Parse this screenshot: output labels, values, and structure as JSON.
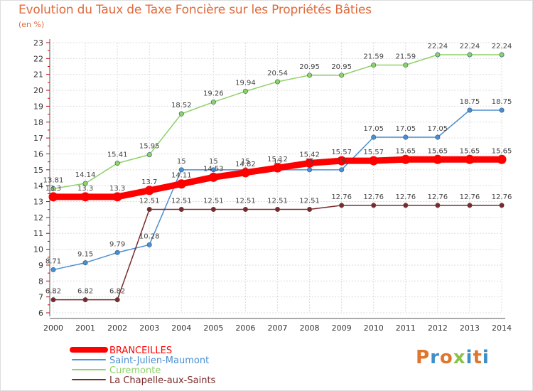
{
  "title": "Evolution du Taux de Taxe Foncière sur les Propriétés Bâties",
  "subtitle": "(en %)",
  "logo": {
    "text": "Proxiti",
    "colors": [
      "#e0762b",
      "#3c8fc9",
      "#e0762b",
      "#8bc34a",
      "#3c8fc9",
      "#e0762b",
      "#3c8fc9"
    ]
  },
  "chart_data": {
    "type": "line",
    "title": "Evolution du Taux de Taxe Foncière sur les Propriétés Bâties",
    "ylabel": "(en %)",
    "x": [
      2000,
      2001,
      2002,
      2003,
      2004,
      2005,
      2006,
      2007,
      2008,
      2009,
      2010,
      2011,
      2012,
      2013,
      2014
    ],
    "ylim": [
      6,
      23
    ],
    "yticks": [
      6,
      7,
      8,
      9,
      10,
      11,
      12,
      13,
      14,
      15,
      16,
      17,
      18,
      19,
      20,
      21,
      22,
      23
    ],
    "grid": true,
    "legend_position": "bottom-left",
    "series": [
      {
        "name": "BRANCEILLES",
        "color": "#ff0000",
        "values": [
          13.3,
          13.3,
          13.3,
          13.7,
          14.11,
          14.53,
          14.82,
          15.12,
          15.42,
          15.57,
          15.57,
          15.65,
          15.65,
          15.65,
          15.65
        ],
        "labels": [
          "13.3",
          "13.3",
          "13.3",
          "13.7",
          "14.11",
          "14.53",
          "14.82",
          "15.12",
          "15.42",
          "15.57",
          "15.57",
          "15.65",
          "15.65",
          "15.65",
          "15.65"
        ]
      },
      {
        "name": "Saint-Julien-Maumont",
        "color": "#4b8fd0",
        "values": [
          8.71,
          9.15,
          9.79,
          10.28,
          15,
          15,
          15,
          15,
          15,
          15,
          17.05,
          17.05,
          17.05,
          18.75,
          18.75
        ],
        "labels": [
          "8.71",
          "9.15",
          "9.79",
          "10.28",
          "15",
          "15",
          "15",
          "15",
          "15",
          "15",
          "17.05",
          "17.05",
          "17.05",
          "18.75",
          "18.75"
        ]
      },
      {
        "name": "Curemonte",
        "color": "#8fd16a",
        "values": [
          13.81,
          14.14,
          15.41,
          15.95,
          18.52,
          19.26,
          19.94,
          20.54,
          20.95,
          20.95,
          21.59,
          21.59,
          22.24,
          22.24,
          22.24
        ],
        "labels": [
          "13.81",
          "14.14",
          "15.41",
          "15.95",
          "18.52",
          "19.26",
          "19.94",
          "20.54",
          "20.95",
          "20.95",
          "21.59",
          "21.59",
          "22.24",
          "22.24",
          "22.24"
        ]
      },
      {
        "name": "La Chapelle-aux-Saints",
        "color": "#7b2a2a",
        "values": [
          6.82,
          6.82,
          6.82,
          12.51,
          12.51,
          12.51,
          12.51,
          12.51,
          12.51,
          12.76,
          12.76,
          12.76,
          12.76,
          12.76,
          12.76
        ],
        "labels": [
          "6.82",
          "6.82",
          "6.82",
          "12.51",
          "12.51",
          "12.51",
          "12.51",
          "12.51",
          "12.51",
          "12.76",
          "12.76",
          "12.76",
          "12.76",
          "12.76",
          "12.76"
        ]
      }
    ]
  }
}
